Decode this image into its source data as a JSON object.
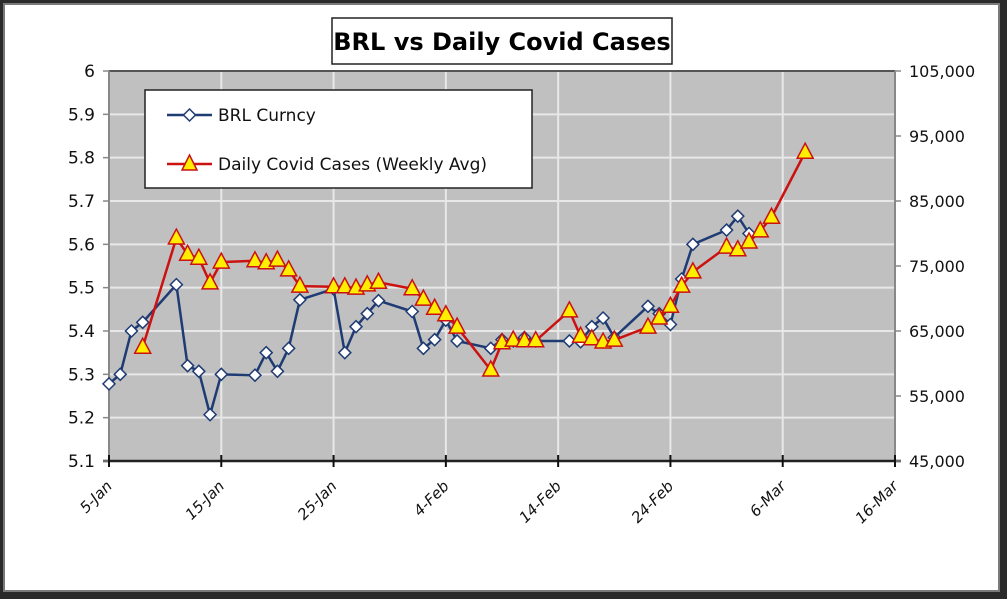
{
  "chart_data": {
    "type": "line",
    "title": "BRL vs Daily Covid Cases",
    "xlabel": "",
    "ylabel": "",
    "y2label": "",
    "x_axis": {
      "type": "date",
      "start": "5-Jan",
      "end": "16-Mar",
      "range_days": [
        0,
        70
      ],
      "tick_labels": [
        "5-Jan",
        "15-Jan",
        "25-Jan",
        "4-Feb",
        "14-Feb",
        "24-Feb",
        "6-Mar",
        "16-Mar"
      ],
      "tick_days": [
        0,
        10,
        20,
        30,
        40,
        50,
        60,
        70
      ]
    },
    "ylim": [
      5.1,
      6.0
    ],
    "y_ticks": [
      "5.1",
      "5.2",
      "5.3",
      "5.4",
      "5.5",
      "5.6",
      "5.7",
      "5.8",
      "5.9",
      "6"
    ],
    "y2lim": [
      45000,
      105000
    ],
    "y2_ticks": [
      "45,000",
      "55,000",
      "65,000",
      "75,000",
      "85,000",
      "95,000",
      "105,000"
    ],
    "grid": true,
    "legend": "top-left",
    "series": [
      {
        "name": "BRL Curncy",
        "axis": "left",
        "color": "#1f3b73",
        "marker": "diamond",
        "marker_fill": "#ffffff",
        "days": [
          0,
          1,
          2,
          3,
          6,
          7,
          8,
          9,
          10,
          13,
          14,
          15,
          16,
          17,
          20,
          21,
          22,
          23,
          24,
          27,
          28,
          29,
          30,
          31,
          34,
          35,
          36,
          37,
          38,
          41,
          42,
          43,
          44,
          45,
          48,
          49,
          50,
          51,
          52,
          55,
          56,
          57
        ],
        "values": [
          5.278,
          5.3,
          5.4,
          5.42,
          5.507,
          5.32,
          5.307,
          5.207,
          5.3,
          5.298,
          5.35,
          5.307,
          5.36,
          5.472,
          5.497,
          5.35,
          5.41,
          5.44,
          5.47,
          5.445,
          5.36,
          5.38,
          5.425,
          5.377,
          5.36,
          5.38,
          5.377,
          5.385,
          5.377,
          5.377,
          5.375,
          5.41,
          5.43,
          5.385,
          5.457,
          5.44,
          5.415,
          5.52,
          5.6,
          5.633,
          5.665,
          5.625
        ]
      },
      {
        "name": "Daily Covid Cases (Weekly Avg)",
        "axis": "right",
        "color": "#cc1111",
        "marker": "triangle",
        "marker_fill": "#ffee00",
        "days": [
          3,
          6,
          7,
          8,
          9,
          10,
          13,
          14,
          15,
          16,
          17,
          20,
          21,
          22,
          23,
          24,
          27,
          28,
          29,
          30,
          31,
          34,
          35,
          36,
          37,
          38,
          41,
          42,
          43,
          44,
          45,
          48,
          49,
          50,
          51,
          52,
          55,
          56,
          57,
          58,
          59,
          62
        ],
        "values": [
          62500,
          79300,
          76800,
          76200,
          72400,
          75600,
          75800,
          75500,
          75900,
          74400,
          71900,
          71800,
          71800,
          71600,
          72100,
          72500,
          71500,
          69900,
          68500,
          67500,
          65600,
          59000,
          63200,
          63600,
          63500,
          63500,
          68100,
          64200,
          63800,
          63300,
          63600,
          65600,
          67000,
          68800,
          71900,
          74100,
          77900,
          77500,
          78700,
          80400,
          82500,
          92500
        ]
      }
    ]
  },
  "colors": {
    "plot_background": "#c0c0c0",
    "gridline": "#e8e8e8"
  }
}
